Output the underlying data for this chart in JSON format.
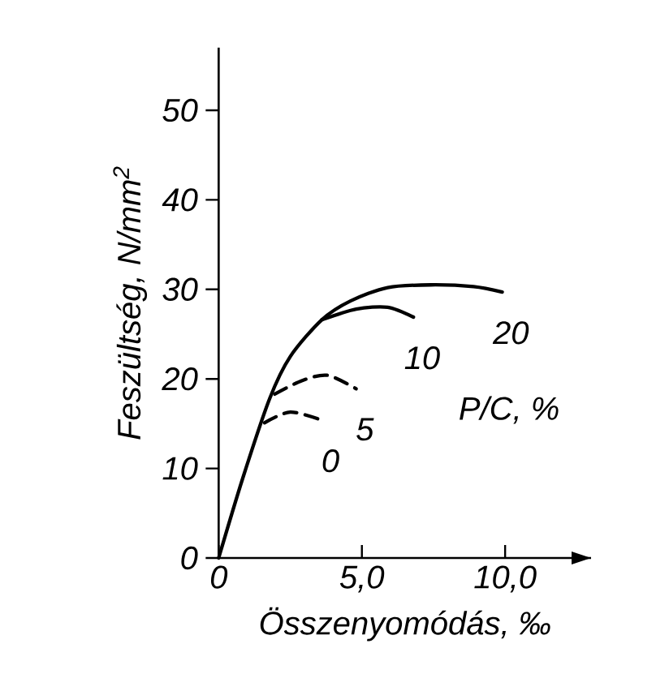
{
  "chart_data": {
    "type": "line",
    "xlabel": "Összenyomódás, ‰",
    "ylabel": "Feszültség, N/mm$^{2}$",
    "legend_title": "P/C, %",
    "xlim": [
      0,
      13
    ],
    "ylim": [
      0,
      57
    ],
    "xticks": [
      {
        "value": 0,
        "label": "0"
      },
      {
        "value": 5,
        "label": "5,0"
      },
      {
        "value": 10,
        "label": "10,0"
      }
    ],
    "yticks": [
      0,
      10,
      20,
      30,
      40,
      50
    ],
    "series": [
      {
        "name": "20",
        "color": "#000000",
        "line_style": "solid",
        "x": [
          0,
          0.84,
          1.78,
          2.5,
          3.6,
          4.6,
          5.9,
          7.4,
          8.9,
          9.9
        ],
        "values": [
          0,
          8.9,
          17.8,
          22.5,
          26.6,
          28.7,
          30.2,
          30.5,
          30.3,
          29.7
        ]
      },
      {
        "name": "10",
        "color": "#000000",
        "line_style": "solid",
        "x": [
          3.6,
          4.8,
          5.9,
          6.8
        ],
        "values": [
          26.6,
          27.8,
          28.0,
          26.9
        ]
      },
      {
        "name": "5",
        "color": "#000000",
        "line_style": "dashed",
        "x": [
          1.96,
          2.9,
          3.8,
          4.8
        ],
        "values": [
          18.3,
          19.8,
          20.4,
          18.9
        ]
      },
      {
        "name": "0",
        "color": "#000000",
        "line_style": "dashed",
        "x": [
          1.6,
          2.5,
          3.6
        ],
        "values": [
          15.1,
          16.3,
          15.4
        ]
      }
    ]
  }
}
